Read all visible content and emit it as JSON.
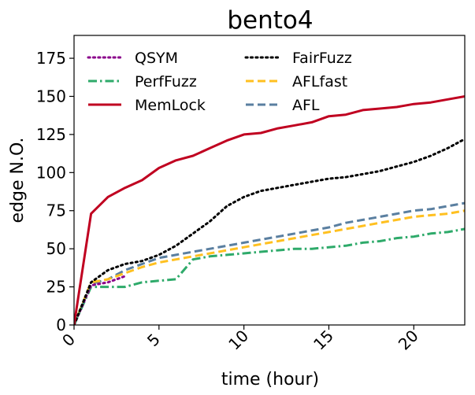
{
  "chart_data": {
    "type": "line",
    "title": "bento4",
    "xlabel": "time (hour)",
    "ylabel": "edge N.O.",
    "xlim": [
      0,
      23
    ],
    "ylim": [
      0,
      190
    ],
    "xticks": [
      0,
      5,
      10,
      15,
      20
    ],
    "yticks": [
      0,
      25,
      50,
      75,
      100,
      125,
      150,
      175
    ],
    "grid": false,
    "legend_position": "top-left",
    "legend_columns": 2,
    "series": [
      {
        "name": "QSYM",
        "color": "#8b008b",
        "style": "dotted",
        "x": [
          0,
          1,
          2,
          3
        ],
        "y": [
          0,
          26,
          28,
          32
        ]
      },
      {
        "name": "PerfFuzz",
        "color": "#2eaa6a",
        "style": "dashdot",
        "x": [
          0,
          1,
          2,
          3,
          4,
          5,
          6,
          7,
          8,
          9,
          10,
          11,
          12,
          13,
          14,
          15,
          16,
          17,
          18,
          19,
          20,
          21,
          22,
          23
        ],
        "y": [
          0,
          25,
          25,
          25,
          28,
          29,
          30,
          43,
          45,
          46,
          47,
          48,
          49,
          50,
          50,
          51,
          52,
          54,
          55,
          57,
          58,
          60,
          61,
          63
        ]
      },
      {
        "name": "MemLock",
        "color": "#c00020",
        "style": "solid",
        "x": [
          0,
          1,
          2,
          3,
          4,
          5,
          6,
          7,
          8,
          9,
          10,
          11,
          12,
          13,
          14,
          15,
          16,
          17,
          18,
          19,
          20,
          21,
          22,
          23
        ],
        "y": [
          0,
          73,
          84,
          90,
          95,
          103,
          108,
          111,
          116,
          121,
          125,
          126,
          129,
          131,
          133,
          137,
          138,
          141,
          142,
          143,
          145,
          146,
          148,
          150
        ]
      },
      {
        "name": "FairFuzz",
        "color": "#000000",
        "style": "dotted",
        "x": [
          0,
          1,
          2,
          3,
          4,
          5,
          6,
          7,
          8,
          9,
          10,
          11,
          12,
          13,
          14,
          15,
          16,
          17,
          18,
          19,
          20,
          21,
          22,
          23
        ],
        "y": [
          0,
          28,
          36,
          40,
          42,
          46,
          52,
          60,
          68,
          78,
          84,
          88,
          90,
          92,
          94,
          96,
          97,
          99,
          101,
          104,
          107,
          111,
          116,
          122
        ]
      },
      {
        "name": "AFLfast",
        "color": "#ffc020",
        "style": "dashed",
        "x": [
          0,
          1,
          2,
          3,
          4,
          5,
          6,
          7,
          8,
          9,
          10,
          11,
          12,
          13,
          14,
          15,
          16,
          17,
          18,
          19,
          20,
          21,
          22,
          23
        ],
        "y": [
          0,
          28,
          30,
          34,
          38,
          41,
          43,
          45,
          47,
          49,
          51,
          53,
          55,
          57,
          59,
          61,
          63,
          65,
          67,
          69,
          71,
          72,
          73,
          75
        ]
      },
      {
        "name": "AFL",
        "color": "#5a7fa0",
        "style": "dashed",
        "x": [
          0,
          1,
          2,
          3,
          4,
          5,
          6,
          7,
          8,
          9,
          10,
          11,
          12,
          13,
          14,
          15,
          16,
          17,
          18,
          19,
          20,
          21,
          22,
          23
        ],
        "y": [
          0,
          27,
          30,
          36,
          40,
          44,
          46,
          48,
          50,
          52,
          54,
          56,
          58,
          60,
          62,
          64,
          67,
          69,
          71,
          73,
          75,
          76,
          78,
          80
        ]
      }
    ]
  }
}
